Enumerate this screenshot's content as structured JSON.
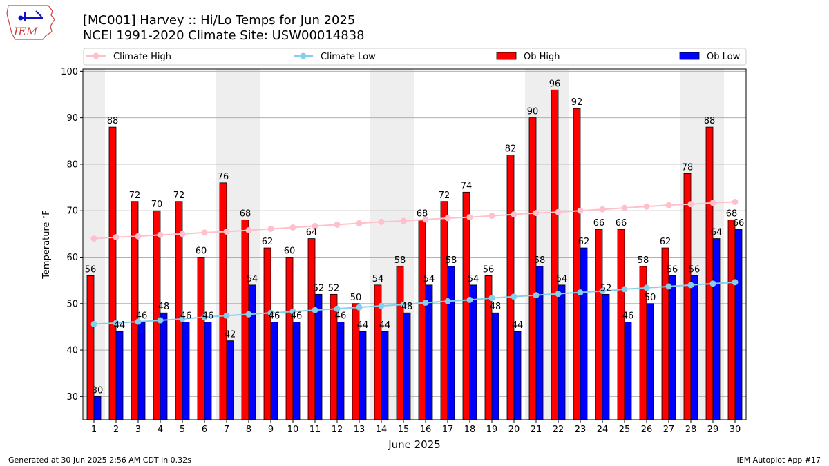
{
  "header": {
    "title_line1": "[MC001] Harvey  :: Hi/Lo Temps for Jun 2025",
    "title_line2": "NCEI 1991-2020 Climate Site: USW00014838",
    "logo_text": "IEM"
  },
  "footer": {
    "left": "Generated at 30 Jun 2025 2:56 AM CDT in 0.32s",
    "right": "IEM Autoplot App #17"
  },
  "colors": {
    "ob_high": "#ff0000",
    "ob_low": "#0000ff",
    "climate_high": "#ffc0cb",
    "climate_low": "#87ceeb",
    "weekend_band": "#eeeeee",
    "grid": "#b0b0b0"
  },
  "chart_data": {
    "type": "bar",
    "xlabel": "June 2025",
    "ylabel": "Temperature $^\\circ$F",
    "ylim": [
      25,
      100.5
    ],
    "yticks": [
      30,
      40,
      50,
      60,
      70,
      80,
      90,
      100
    ],
    "grid": "y-major",
    "legend_placement": "top, above plot",
    "categories": [
      "1",
      "2",
      "3",
      "4",
      "5",
      "6",
      "7",
      "8",
      "9",
      "10",
      "11",
      "12",
      "13",
      "14",
      "15",
      "16",
      "17",
      "18",
      "19",
      "20",
      "21",
      "22",
      "23",
      "24",
      "25",
      "26",
      "27",
      "28",
      "29",
      "30"
    ],
    "weekend_days": [
      1,
      7,
      8,
      14,
      15,
      21,
      22,
      28,
      29
    ],
    "series": [
      {
        "name": "Climate High",
        "kind": "line",
        "values": [
          64.0,
          64.3,
          64.5,
          64.8,
          65.0,
          65.3,
          65.5,
          65.8,
          66.1,
          66.4,
          66.7,
          67.0,
          67.3,
          67.6,
          67.8,
          68.1,
          68.4,
          68.6,
          68.9,
          69.2,
          69.5,
          69.7,
          70.0,
          70.3,
          70.6,
          70.9,
          71.2,
          71.4,
          71.7,
          71.9
        ]
      },
      {
        "name": "Climate Low",
        "kind": "line",
        "values": [
          45.6,
          45.8,
          46.1,
          46.4,
          46.7,
          47.1,
          47.4,
          47.7,
          48.0,
          48.3,
          48.6,
          48.9,
          49.2,
          49.5,
          49.8,
          50.2,
          50.5,
          50.8,
          51.2,
          51.5,
          51.8,
          52.1,
          52.4,
          52.7,
          53.1,
          53.4,
          53.7,
          54.0,
          54.3,
          54.6
        ]
      },
      {
        "name": "Ob High",
        "kind": "bar",
        "values": [
          56,
          88,
          72,
          70,
          72,
          60,
          76,
          68,
          62,
          60,
          64,
          52,
          50,
          54,
          58,
          68,
          72,
          74,
          56,
          82,
          90,
          96,
          92,
          66,
          66,
          58,
          62,
          78,
          88,
          68
        ]
      },
      {
        "name": "Ob Low",
        "kind": "bar",
        "values": [
          30,
          44,
          46,
          48,
          46,
          46,
          42,
          54,
          46,
          46,
          52,
          46,
          44,
          44,
          48,
          54,
          58,
          54,
          48,
          44,
          58,
          54,
          62,
          52,
          46,
          50,
          56,
          56,
          64,
          66
        ]
      }
    ]
  }
}
